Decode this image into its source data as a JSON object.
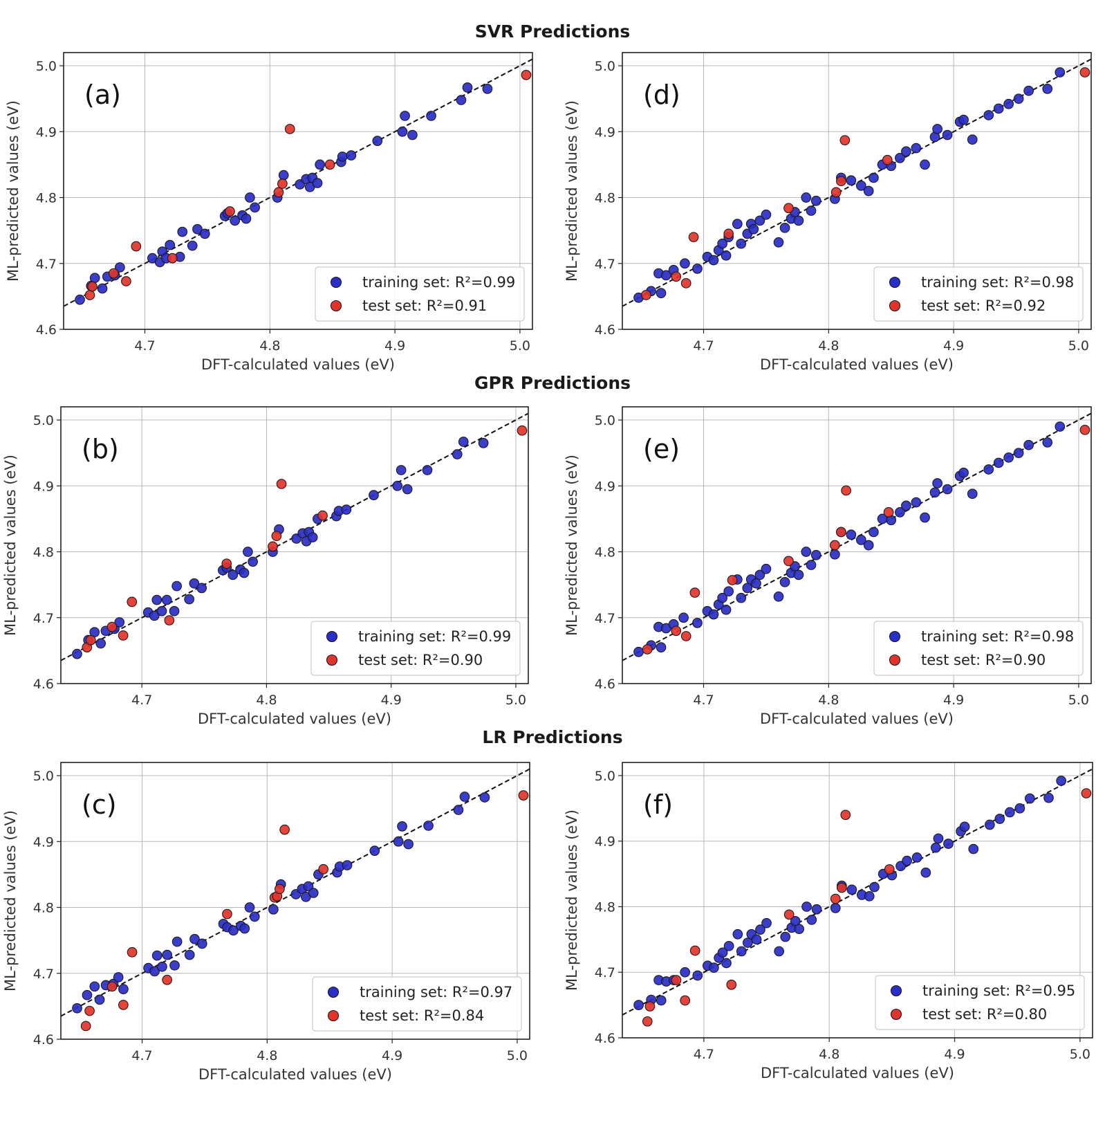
{
  "colors": {
    "train": "#2a2ec8",
    "test": "#e5332a",
    "edge": "#1a1a1a"
  },
  "sections": [
    {
      "key": "svr",
      "title": "SVR Predictions"
    },
    {
      "key": "gpr",
      "title": "GPR Predictions"
    },
    {
      "key": "lr",
      "title": "LR Predictions"
    }
  ],
  "chart_data": [
    {
      "type": "scatter",
      "panel": "(a)",
      "model": "SVR",
      "title": "SVR Predictions",
      "xlabel": "DFT-calculated values (eV)",
      "ylabel": "ML-predicted values (eV)",
      "xlim": [
        4.635,
        5.01
      ],
      "ylim": [
        4.6,
        5.02
      ],
      "xticks": [
        "4.7",
        "4.8",
        "4.9",
        "5.0"
      ],
      "yticks": [
        "4.6",
        "4.7",
        "4.8",
        "4.9",
        "5.0"
      ],
      "grid": true,
      "legend_position": "lower-right",
      "series": [
        {
          "name": "training set: R²=0.99",
          "role": "train",
          "x": [
            4.648,
            4.657,
            4.66,
            4.666,
            4.67,
            4.676,
            4.68,
            4.706,
            4.712,
            4.714,
            4.717,
            4.72,
            4.728,
            4.73,
            4.738,
            4.742,
            4.748,
            4.764,
            4.766,
            4.772,
            4.778,
            4.781,
            4.784,
            4.788,
            4.806,
            4.811,
            4.824,
            4.829,
            4.832,
            4.834,
            4.838,
            4.84,
            4.857,
            4.858,
            4.865,
            4.886,
            4.906,
            4.908,
            4.914,
            4.929,
            4.953,
            4.958,
            4.974
          ],
          "y": [
            4.645,
            4.666,
            4.678,
            4.662,
            4.68,
            4.682,
            4.694,
            4.708,
            4.702,
            4.718,
            4.708,
            4.728,
            4.71,
            4.748,
            4.727,
            4.752,
            4.745,
            4.772,
            4.776,
            4.765,
            4.773,
            4.768,
            4.8,
            4.785,
            4.8,
            4.834,
            4.82,
            4.828,
            4.816,
            4.83,
            4.822,
            4.85,
            4.854,
            4.862,
            4.864,
            4.886,
            4.9,
            4.924,
            4.895,
            4.924,
            4.948,
            4.967,
            4.965
          ]
        },
        {
          "name": "test set: R²=0.91",
          "role": "test",
          "x": [
            4.656,
            4.658,
            4.675,
            4.685,
            4.693,
            4.722,
            4.768,
            4.807,
            4.81,
            4.816,
            4.848,
            5.005
          ],
          "y": [
            4.652,
            4.665,
            4.685,
            4.673,
            4.726,
            4.708,
            4.779,
            4.808,
            4.821,
            4.904,
            4.85,
            4.986
          ]
        }
      ]
    },
    {
      "type": "scatter",
      "panel": "(d)",
      "model": "SVR",
      "title": "SVR Predictions",
      "xlabel": "DFT-calculated values (eV)",
      "ylabel": "ML-predicted values (eV)",
      "xlim": [
        4.635,
        5.01
      ],
      "ylim": [
        4.6,
        5.02
      ],
      "xticks": [
        "4.7",
        "4.8",
        "4.9",
        "5.0"
      ],
      "yticks": [
        "4.6",
        "4.7",
        "4.8",
        "4.9",
        "5.0"
      ],
      "grid": true,
      "legend_position": "lower-right",
      "series": [
        {
          "name": "training set: R²=0.98",
          "role": "train",
          "x": [
            4.648,
            4.658,
            4.664,
            4.666,
            4.67,
            4.676,
            4.685,
            4.695,
            4.703,
            4.708,
            4.712,
            4.715,
            4.718,
            4.72,
            4.727,
            4.73,
            4.735,
            4.738,
            4.74,
            4.745,
            4.75,
            4.76,
            4.765,
            4.77,
            4.773,
            4.776,
            4.782,
            4.786,
            4.79,
            4.805,
            4.81,
            4.818,
            4.826,
            4.832,
            4.836,
            4.843,
            4.85,
            4.857,
            4.862,
            4.87,
            4.877,
            4.885,
            4.887,
            4.895,
            4.905,
            4.908,
            4.915,
            4.928,
            4.936,
            4.944,
            4.952,
            4.96,
            4.975,
            4.985
          ],
          "y": [
            4.648,
            4.658,
            4.685,
            4.655,
            4.682,
            4.69,
            4.7,
            4.692,
            4.71,
            4.705,
            4.72,
            4.73,
            4.712,
            4.74,
            4.76,
            4.73,
            4.745,
            4.76,
            4.752,
            4.765,
            4.774,
            4.732,
            4.754,
            4.768,
            4.778,
            4.765,
            4.8,
            4.78,
            4.795,
            4.798,
            4.83,
            4.826,
            4.818,
            4.81,
            4.83,
            4.85,
            4.848,
            4.86,
            4.87,
            4.875,
            4.85,
            4.892,
            4.904,
            4.895,
            4.915,
            4.918,
            4.888,
            4.925,
            4.935,
            4.942,
            4.95,
            4.962,
            4.965,
            4.99
          ]
        },
        {
          "name": "test set: R²=0.92",
          "role": "test",
          "x": [
            4.654,
            4.678,
            4.686,
            4.692,
            4.72,
            4.768,
            4.806,
            4.81,
            4.813,
            4.847,
            5.005
          ],
          "y": [
            4.652,
            4.68,
            4.67,
            4.74,
            4.745,
            4.784,
            4.808,
            4.825,
            4.887,
            4.857,
            4.99
          ]
        }
      ]
    },
    {
      "type": "scatter",
      "panel": "(b)",
      "model": "GPR",
      "title": "GPR Predictions",
      "xlabel": "DFT-calculated values (eV)",
      "ylabel": "ML-predicted values (eV)",
      "xlim": [
        4.635,
        5.01
      ],
      "ylim": [
        4.6,
        5.02
      ],
      "xticks": [
        "4.7",
        "4.8",
        "4.9",
        "5.0"
      ],
      "yticks": [
        "4.6",
        "4.7",
        "4.8",
        "4.9",
        "5.0"
      ],
      "grid": true,
      "legend_position": "lower-right",
      "series": [
        {
          "name": "training set: R²=0.99",
          "role": "train",
          "x": [
            4.648,
            4.657,
            4.662,
            4.667,
            4.671,
            4.678,
            4.682,
            4.705,
            4.71,
            4.712,
            4.716,
            4.72,
            4.726,
            4.728,
            4.738,
            4.742,
            4.748,
            4.765,
            4.768,
            4.773,
            4.779,
            4.782,
            4.785,
            4.789,
            4.805,
            4.81,
            4.824,
            4.829,
            4.832,
            4.834,
            4.837,
            4.841,
            4.856,
            4.858,
            4.864,
            4.886,
            4.905,
            4.908,
            4.913,
            4.929,
            4.953,
            4.958,
            4.974
          ],
          "y": [
            4.645,
            4.666,
            4.678,
            4.661,
            4.68,
            4.683,
            4.693,
            4.708,
            4.703,
            4.727,
            4.71,
            4.727,
            4.71,
            4.748,
            4.728,
            4.752,
            4.745,
            4.772,
            4.776,
            4.765,
            4.773,
            4.768,
            4.8,
            4.785,
            4.8,
            4.834,
            4.82,
            4.828,
            4.816,
            4.83,
            4.822,
            4.85,
            4.854,
            4.862,
            4.864,
            4.886,
            4.9,
            4.924,
            4.895,
            4.924,
            4.948,
            4.967,
            4.965
          ]
        },
        {
          "name": "test set: R²=0.90",
          "role": "test",
          "x": [
            4.656,
            4.659,
            4.676,
            4.685,
            4.692,
            4.722,
            4.768,
            4.805,
            4.808,
            4.812,
            4.845,
            5.005
          ],
          "y": [
            4.655,
            4.666,
            4.686,
            4.673,
            4.724,
            4.696,
            4.782,
            4.808,
            4.824,
            4.903,
            4.855,
            4.984
          ]
        }
      ]
    },
    {
      "type": "scatter",
      "panel": "(e)",
      "model": "GPR",
      "title": "GPR Predictions",
      "xlabel": "DFT-calculated values (eV)",
      "ylabel": "ML-predicted values (eV)",
      "xlim": [
        4.635,
        5.01
      ],
      "ylim": [
        4.6,
        5.02
      ],
      "xticks": [
        "4.7",
        "4.8",
        "4.9",
        "5.0"
      ],
      "yticks": [
        "4.6",
        "4.7",
        "4.8",
        "4.9",
        "5.0"
      ],
      "grid": true,
      "legend_position": "lower-right",
      "series": [
        {
          "name": "training set: R²=0.98",
          "role": "train",
          "x": [
            4.648,
            4.658,
            4.664,
            4.666,
            4.67,
            4.676,
            4.684,
            4.695,
            4.703,
            4.708,
            4.712,
            4.715,
            4.718,
            4.72,
            4.727,
            4.73,
            4.735,
            4.738,
            4.742,
            4.745,
            4.75,
            4.76,
            4.765,
            4.77,
            4.773,
            4.776,
            4.782,
            4.786,
            4.79,
            4.805,
            4.81,
            4.818,
            4.826,
            4.832,
            4.836,
            4.843,
            4.85,
            4.857,
            4.862,
            4.87,
            4.877,
            4.885,
            4.887,
            4.895,
            4.905,
            4.908,
            4.915,
            4.928,
            4.936,
            4.944,
            4.952,
            4.96,
            4.975,
            4.985
          ],
          "y": [
            4.648,
            4.658,
            4.686,
            4.655,
            4.684,
            4.69,
            4.7,
            4.692,
            4.71,
            4.705,
            4.72,
            4.73,
            4.712,
            4.74,
            4.758,
            4.73,
            4.745,
            4.758,
            4.752,
            4.765,
            4.774,
            4.732,
            4.754,
            4.768,
            4.778,
            4.765,
            4.8,
            4.78,
            4.795,
            4.796,
            4.83,
            4.826,
            4.818,
            4.81,
            4.83,
            4.85,
            4.848,
            4.86,
            4.87,
            4.875,
            4.852,
            4.89,
            4.904,
            4.895,
            4.915,
            4.92,
            4.888,
            4.925,
            4.935,
            4.943,
            4.95,
            4.962,
            4.966,
            4.99
          ]
        },
        {
          "name": "test set: R²=0.90",
          "role": "test",
          "x": [
            4.655,
            4.678,
            4.686,
            4.693,
            4.723,
            4.768,
            4.805,
            4.81,
            4.814,
            4.848,
            5.005
          ],
          "y": [
            4.652,
            4.68,
            4.672,
            4.738,
            4.757,
            4.786,
            4.81,
            4.83,
            4.893,
            4.86,
            4.985
          ]
        }
      ]
    },
    {
      "type": "scatter",
      "panel": "(c)",
      "model": "LR",
      "title": "LR Predictions",
      "xlabel": "DFT-calculated values (eV)",
      "ylabel": "ML-predicted values (eV)",
      "xlim": [
        4.635,
        5.01
      ],
      "ylim": [
        4.6,
        5.02
      ],
      "xticks": [
        "4.7",
        "4.8",
        "4.9",
        "5.0"
      ],
      "yticks": [
        "4.6",
        "4.7",
        "4.8",
        "4.9",
        "5.0"
      ],
      "grid": true,
      "legend_position": "lower-right",
      "series": [
        {
          "name": "training set: R²=0.97",
          "role": "train",
          "x": [
            4.648,
            4.656,
            4.662,
            4.666,
            4.671,
            4.677,
            4.681,
            4.685,
            4.705,
            4.71,
            4.712,
            4.716,
            4.72,
            4.726,
            4.728,
            4.738,
            4.742,
            4.748,
            4.765,
            4.768,
            4.773,
            4.779,
            4.782,
            4.786,
            4.79,
            4.805,
            4.811,
            4.823,
            4.828,
            4.831,
            4.833,
            4.837,
            4.841,
            4.856,
            4.858,
            4.864,
            4.886,
            4.905,
            4.908,
            4.913,
            4.929,
            4.953,
            4.958,
            4.974
          ],
          "y": [
            4.647,
            4.667,
            4.68,
            4.66,
            4.682,
            4.684,
            4.694,
            4.676,
            4.708,
            4.703,
            4.727,
            4.71,
            4.728,
            4.712,
            4.748,
            4.728,
            4.752,
            4.745,
            4.775,
            4.77,
            4.765,
            4.772,
            4.768,
            4.8,
            4.786,
            4.797,
            4.835,
            4.82,
            4.828,
            4.816,
            4.832,
            4.822,
            4.85,
            4.853,
            4.862,
            4.864,
            4.886,
            4.9,
            4.923,
            4.896,
            4.924,
            4.948,
            4.968,
            4.967
          ]
        },
        {
          "name": "test set: R²=0.84",
          "role": "test",
          "x": [
            4.655,
            4.658,
            4.676,
            4.685,
            4.692,
            4.72,
            4.768,
            4.806,
            4.808,
            4.81,
            4.814,
            4.845,
            5.005
          ],
          "y": [
            4.62,
            4.643,
            4.68,
            4.652,
            4.732,
            4.69,
            4.79,
            4.815,
            4.817,
            4.828,
            4.918,
            4.858,
            4.97
          ]
        }
      ]
    },
    {
      "type": "scatter",
      "panel": "(f)",
      "model": "LR",
      "title": "LR Predictions",
      "xlabel": "DFT-calculated values (eV)",
      "ylabel": "ML-predicted values (eV)",
      "xlim": [
        4.635,
        5.01
      ],
      "ylim": [
        4.6,
        5.02
      ],
      "xticks": [
        "4.7",
        "4.8",
        "4.9",
        "5.0"
      ],
      "yticks": [
        "4.6",
        "4.7",
        "4.8",
        "4.9",
        "5.0"
      ],
      "grid": true,
      "legend_position": "lower-right",
      "series": [
        {
          "name": "training set: R²=0.95",
          "role": "train",
          "x": [
            4.648,
            4.658,
            4.664,
            4.666,
            4.67,
            4.676,
            4.685,
            4.695,
            4.703,
            4.708,
            4.712,
            4.715,
            4.718,
            4.72,
            4.727,
            4.73,
            4.735,
            4.738,
            4.742,
            4.745,
            4.75,
            4.76,
            4.765,
            4.77,
            4.773,
            4.776,
            4.782,
            4.786,
            4.79,
            4.805,
            4.81,
            4.818,
            4.826,
            4.832,
            4.836,
            4.843,
            4.85,
            4.857,
            4.862,
            4.87,
            4.877,
            4.885,
            4.887,
            4.895,
            4.905,
            4.908,
            4.915,
            4.928,
            4.936,
            4.944,
            4.952,
            4.96,
            4.975,
            4.985
          ],
          "y": [
            4.65,
            4.658,
            4.688,
            4.657,
            4.686,
            4.688,
            4.7,
            4.695,
            4.71,
            4.707,
            4.722,
            4.73,
            4.714,
            4.74,
            4.758,
            4.732,
            4.745,
            4.758,
            4.75,
            4.765,
            4.775,
            4.732,
            4.754,
            4.768,
            4.778,
            4.766,
            4.8,
            4.78,
            4.796,
            4.798,
            4.832,
            4.826,
            4.818,
            4.816,
            4.83,
            4.85,
            4.848,
            4.862,
            4.87,
            4.875,
            4.852,
            4.89,
            4.904,
            4.896,
            4.915,
            4.922,
            4.888,
            4.925,
            4.934,
            4.944,
            4.95,
            4.965,
            4.966,
            4.992
          ]
        },
        {
          "name": "test set: R²=0.80",
          "role": "test",
          "x": [
            4.655,
            4.657,
            4.678,
            4.685,
            4.693,
            4.722,
            4.768,
            4.805,
            4.81,
            4.813,
            4.848,
            5.005
          ],
          "y": [
            4.625,
            4.648,
            4.688,
            4.657,
            4.733,
            4.681,
            4.788,
            4.812,
            4.829,
            4.94,
            4.857,
            4.973
          ]
        }
      ]
    }
  ]
}
